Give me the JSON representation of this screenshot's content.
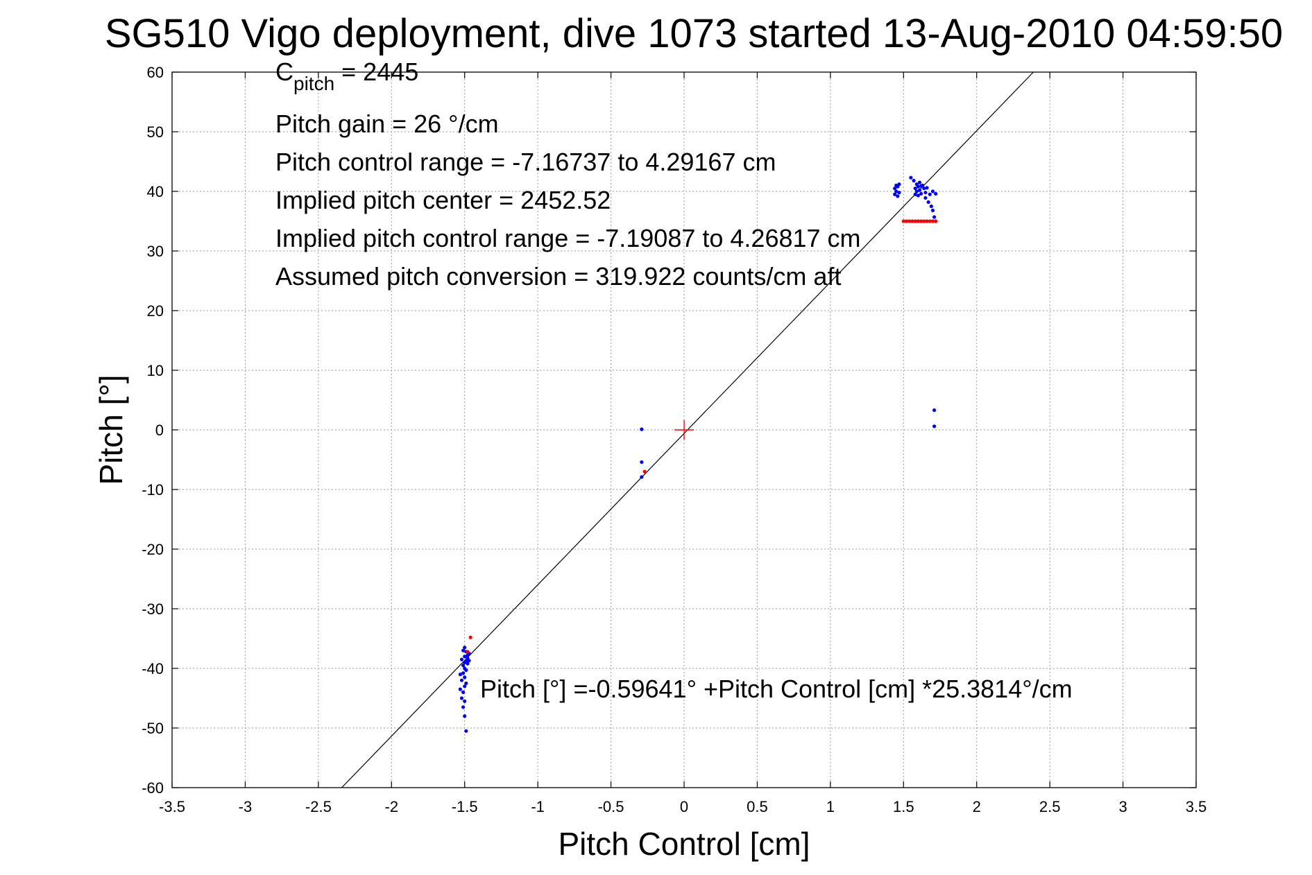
{
  "chart_data": {
    "type": "scatter",
    "title": "SG510 Vigo deployment, dive 1073 started 13-Aug-2010 04:59:50",
    "xlabel": "Pitch Control [cm]",
    "ylabel": "Pitch [°]",
    "xlim": [
      -3.5,
      3.5
    ],
    "ylim": [
      -60,
      60
    ],
    "xticks": [
      -3.5,
      -3,
      -2.5,
      -2,
      -1.5,
      -1,
      -0.5,
      0,
      0.5,
      1,
      1.5,
      2,
      2.5,
      3,
      3.5
    ],
    "xtick_labels": [
      "-3.5",
      "-3",
      "-2.5",
      "-2",
      "-1.5",
      "-1",
      "-0.5",
      "0",
      "0.5",
      "1",
      "1.5",
      "2",
      "2.5",
      "3",
      "3.5"
    ],
    "yticks": [
      60,
      50,
      40,
      30,
      20,
      10,
      0,
      -10,
      -20,
      -30,
      -40,
      -50,
      -60
    ],
    "ytick_labels": [
      "60",
      "50",
      "40",
      "30",
      "20",
      "10",
      "0",
      "-10",
      "-20",
      "-30",
      "-40",
      "-50",
      "-60"
    ],
    "grid": true,
    "annotations": {
      "c_pitch_main": "C",
      "c_pitch_sub": "pitch",
      "c_pitch_value": " = 2445",
      "pitch_gain": "Pitch gain = 26 °/cm",
      "control_range": "Pitch control range = -7.16737 to 4.29167 cm",
      "implied_center": "Implied pitch center = 2452.52",
      "implied_range": "Implied pitch control range = -7.19087 to 4.26817 cm",
      "conversion": "Assumed pitch conversion = 319.922 counts/cm aft",
      "fit_equation": "Pitch [°] =-0.59641° +Pitch Control [cm] *25.3814°/cm"
    },
    "fit_line": {
      "intercept": -0.59641,
      "slope": 25.3814,
      "color": "#000000"
    },
    "origin_marker": {
      "x": 0,
      "y": 0,
      "color": "#ff0000"
    },
    "series": [
      {
        "color": "#0000ff",
        "points": [
          [
            1.44,
            40.5
          ],
          [
            1.44,
            39.5
          ],
          [
            1.45,
            41
          ],
          [
            1.45,
            40
          ],
          [
            1.46,
            39.2
          ],
          [
            1.46,
            40.8
          ],
          [
            1.47,
            41.2
          ],
          [
            1.47,
            39.8
          ],
          [
            1.55,
            42.3
          ],
          [
            1.57,
            41.8
          ],
          [
            1.58,
            40.5
          ],
          [
            1.58,
            39.5
          ],
          [
            1.59,
            41.2
          ],
          [
            1.59,
            40
          ],
          [
            1.6,
            39.3
          ],
          [
            1.6,
            40.8
          ],
          [
            1.61,
            41.5
          ],
          [
            1.61,
            40.2
          ],
          [
            1.62,
            39.6
          ],
          [
            1.62,
            40.9
          ],
          [
            1.63,
            41
          ],
          [
            1.64,
            40.5
          ],
          [
            1.65,
            39.8
          ],
          [
            1.65,
            38.9
          ],
          [
            1.66,
            40.6
          ],
          [
            1.67,
            38.2
          ],
          [
            1.68,
            39.5
          ],
          [
            1.69,
            37.5
          ],
          [
            1.7,
            36.8
          ],
          [
            1.7,
            40
          ],
          [
            1.71,
            35.7
          ],
          [
            1.72,
            39.6
          ],
          [
            1.72,
            35
          ],
          [
            1.71,
            3.3
          ],
          [
            1.71,
            0.6
          ],
          [
            -0.29,
            0.1
          ],
          [
            -0.29,
            -5.4
          ],
          [
            -0.29,
            -7.9
          ],
          [
            -1.53,
            -41
          ],
          [
            -1.53,
            -43.5
          ],
          [
            -1.52,
            -38.5
          ],
          [
            -1.52,
            -42
          ],
          [
            -1.52,
            -45
          ],
          [
            -1.51,
            -37
          ],
          [
            -1.51,
            -39.5
          ],
          [
            -1.51,
            -40.8
          ],
          [
            -1.51,
            -44
          ],
          [
            -1.51,
            -46.5
          ],
          [
            -1.5,
            -36.5
          ],
          [
            -1.5,
            -38
          ],
          [
            -1.5,
            -39
          ],
          [
            -1.5,
            -40
          ],
          [
            -1.5,
            -41.5
          ],
          [
            -1.5,
            -43
          ],
          [
            -1.5,
            -45.5
          ],
          [
            -1.5,
            -48
          ],
          [
            -1.49,
            -37.2
          ],
          [
            -1.49,
            -38.8
          ],
          [
            -1.49,
            -40.3
          ],
          [
            -1.49,
            -42.5
          ],
          [
            -1.49,
            -50.5
          ],
          [
            -1.48,
            -37.8
          ],
          [
            -1.48,
            -39.2
          ],
          [
            -1.48,
            -38.3
          ],
          [
            -1.47,
            -37.5
          ],
          [
            -1.47,
            -38.7
          ]
        ]
      },
      {
        "color": "#ff0000",
        "points": [
          [
            1.5,
            35
          ],
          [
            1.52,
            35
          ],
          [
            1.54,
            35
          ],
          [
            1.56,
            35
          ],
          [
            1.58,
            35
          ],
          [
            1.6,
            35
          ],
          [
            1.62,
            35
          ],
          [
            1.64,
            35
          ],
          [
            1.66,
            35
          ],
          [
            1.68,
            35
          ],
          [
            1.7,
            35
          ],
          [
            1.72,
            35
          ],
          [
            -0.27,
            -7
          ],
          [
            -1.46,
            -34.8
          ],
          [
            -1.48,
            -37.2
          ]
        ]
      }
    ]
  }
}
